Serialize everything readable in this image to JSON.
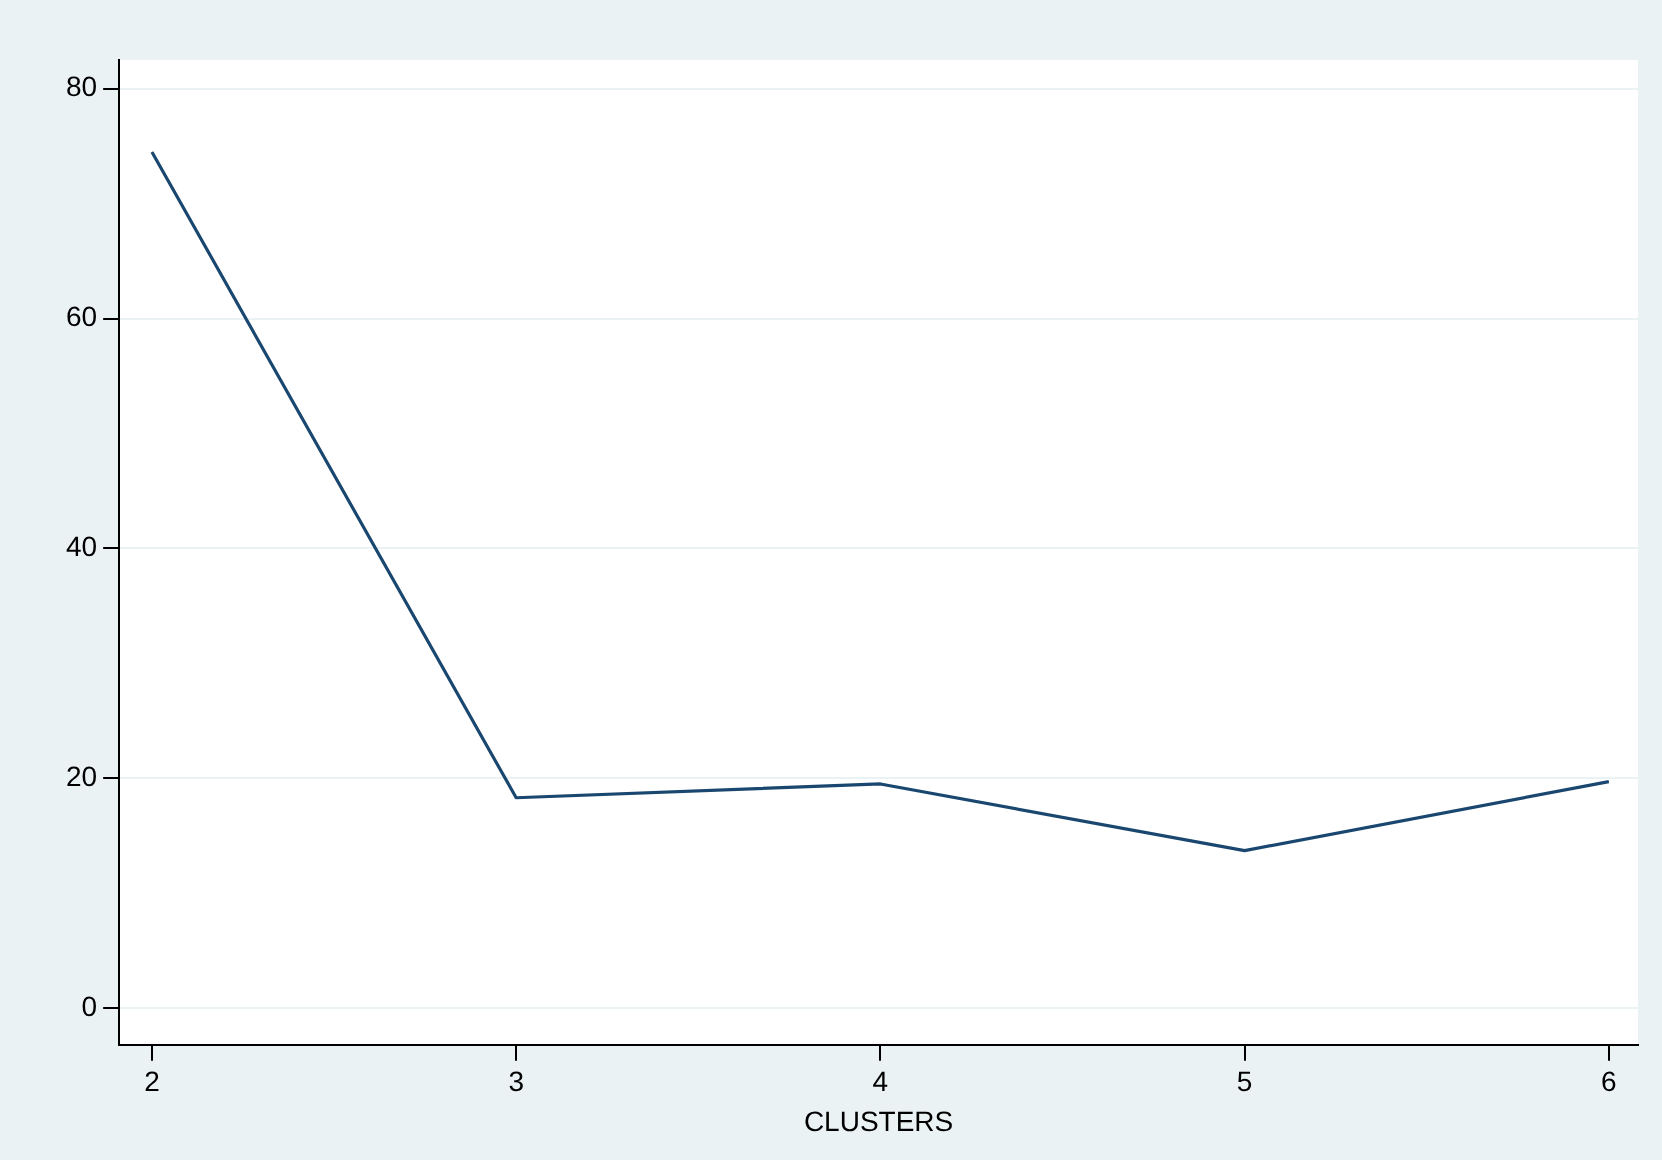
{
  "chart_data": {
    "type": "line",
    "xlabel": "CLUSTERS",
    "x": [
      2,
      3,
      4,
      5,
      6
    ],
    "series": [
      {
        "color": "#1a476f",
        "values": [
          74.5,
          18.3,
          19.5,
          13.7,
          19.7
        ]
      }
    ],
    "xlim": [
      1.91,
      6.08
    ],
    "xticks": [
      2,
      3,
      4,
      5,
      6
    ],
    "ylim": [
      -3.2,
      82.5
    ],
    "yticks": [
      0,
      20,
      40,
      60,
      80
    ],
    "grid": "y",
    "legend": false,
    "marker": "none",
    "line_style": "solid"
  }
}
